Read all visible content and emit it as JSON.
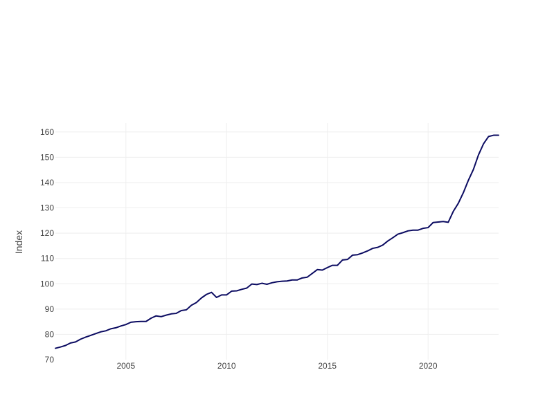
{
  "chart_data": {
    "type": "line",
    "title": "",
    "xlabel": "",
    "ylabel": "Index",
    "xlim": [
      2001.5,
      2023.5
    ],
    "ylim": [
      70,
      163.5
    ],
    "x_ticks": [
      2005,
      2010,
      2015,
      2020
    ],
    "y_ticks": [
      70,
      80,
      90,
      100,
      110,
      120,
      130,
      140,
      150,
      160
    ],
    "grid": true,
    "legend": "none",
    "series": [
      {
        "color": "#0b0b61",
        "x": [
          2001.5,
          2001.75,
          2002.0,
          2002.25,
          2002.5,
          2002.75,
          2003.0,
          2003.25,
          2003.5,
          2003.75,
          2004.0,
          2004.25,
          2004.5,
          2004.75,
          2005.0,
          2005.25,
          2005.5,
          2005.75,
          2006.0,
          2006.25,
          2006.5,
          2006.75,
          2007.0,
          2007.25,
          2007.5,
          2007.75,
          2008.0,
          2008.25,
          2008.5,
          2008.75,
          2009.0,
          2009.25,
          2009.5,
          2009.75,
          2010.0,
          2010.25,
          2010.5,
          2010.75,
          2011.0,
          2011.25,
          2011.5,
          2011.75,
          2012.0,
          2012.25,
          2012.5,
          2012.75,
          2013.0,
          2013.25,
          2013.5,
          2013.75,
          2014.0,
          2014.25,
          2014.5,
          2014.75,
          2015.0,
          2015.25,
          2015.5,
          2015.75,
          2016.0,
          2016.25,
          2016.5,
          2016.75,
          2017.0,
          2017.25,
          2017.5,
          2017.75,
          2018.0,
          2018.25,
          2018.5,
          2018.75,
          2019.0,
          2019.25,
          2019.5,
          2019.75,
          2020.0,
          2020.25,
          2020.5,
          2020.75,
          2021.0,
          2021.25,
          2021.5,
          2021.75,
          2022.0,
          2022.25,
          2022.5,
          2022.75,
          2023.0,
          2023.25,
          2023.5
        ],
        "y": [
          74.5,
          75.0,
          75.6,
          76.6,
          77.0,
          78.1,
          78.9,
          79.6,
          80.3,
          81.0,
          81.4,
          82.2,
          82.6,
          83.3,
          83.9,
          84.8,
          85.0,
          85.1,
          85.1,
          86.4,
          87.3,
          87.0,
          87.6,
          88.1,
          88.3,
          89.4,
          89.7,
          91.5,
          92.6,
          94.4,
          95.8,
          96.6,
          94.6,
          95.6,
          95.6,
          97.1,
          97.2,
          97.8,
          98.3,
          99.9,
          99.7,
          100.2,
          99.8,
          100.4,
          100.8,
          101.0,
          101.1,
          101.5,
          101.5,
          102.3,
          102.6,
          104.1,
          105.6,
          105.4,
          106.4,
          107.3,
          107.3,
          109.4,
          109.6,
          111.3,
          111.5,
          112.2,
          113.0,
          114.0,
          114.4,
          115.3,
          116.9,
          118.2,
          119.6,
          120.2,
          120.9,
          121.2,
          121.2,
          121.9,
          122.2,
          124.2,
          124.4,
          124.6,
          124.3,
          128.6,
          131.8,
          136.0,
          140.9,
          145.2,
          150.9,
          155.3,
          158.2,
          158.7,
          158.7
        ]
      }
    ]
  }
}
